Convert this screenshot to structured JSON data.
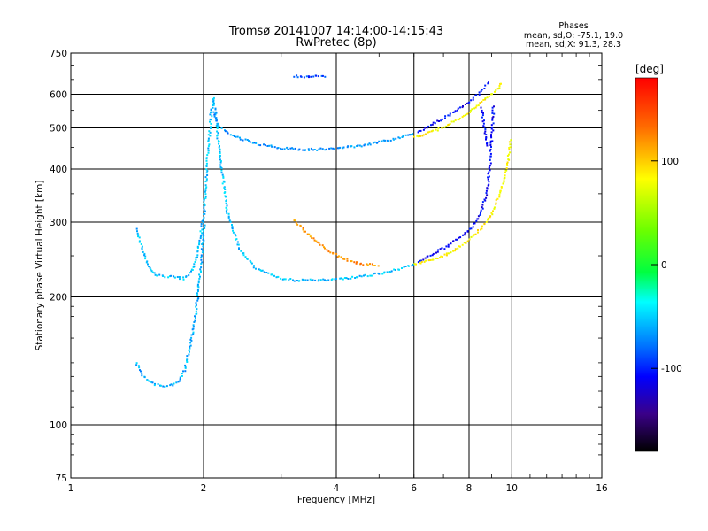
{
  "chart_data": {
    "type": "scatter",
    "title": "Tromsø 20141007 14:14:00-14:15:43",
    "subtitle": "RwPretec (8p)",
    "xlabel": "Frequency [MHz]",
    "ylabel": "Stationary phase Virtual Height [km]",
    "xscale": "log",
    "yscale": "log",
    "xlim": [
      1,
      16
    ],
    "ylim": [
      75,
      750
    ],
    "xticks": [
      1,
      2,
      4,
      6,
      8,
      10,
      16
    ],
    "yticks": [
      75,
      100,
      200,
      300,
      400,
      500,
      600,
      750
    ],
    "grid": true,
    "legend": {
      "title": "Phases",
      "lines": [
        "mean, sd,O: -75.1, 19.0",
        "mean, sd,X:  91.3, 28.3"
      ],
      "position": "top-right"
    },
    "colorbar": {
      "label": "[deg]",
      "range": [
        -180,
        180
      ],
      "ticks": [
        100,
        0,
        -100
      ],
      "colormap": "rainbow"
    },
    "traces": [
      {
        "x": [
          1.4,
          1.45,
          1.5,
          1.55,
          1.6,
          1.7,
          1.8,
          1.85,
          1.9,
          1.95,
          2.0,
          2.02,
          2.05,
          2.07,
          2.1,
          2.15,
          2.25,
          2.4,
          2.6,
          2.8,
          3.0,
          3.2,
          3.5,
          4.0,
          4.5,
          5.0,
          5.5,
          6.0
        ],
        "y": [
          290,
          260,
          235,
          227,
          225,
          224,
          222,
          228,
          240,
          270,
          320,
          390,
          470,
          540,
          590,
          470,
          320,
          260,
          236,
          228,
          222,
          220,
          220,
          221,
          224,
          228,
          233,
          240
        ],
        "phase": -55
      },
      {
        "x": [
          2.1,
          2.15,
          2.25,
          2.4,
          2.6,
          2.8,
          3.0,
          3.3,
          3.6,
          4.0,
          4.5,
          5.0,
          5.5,
          6.0
        ],
        "y": [
          550,
          510,
          490,
          475,
          462,
          455,
          450,
          447,
          447,
          450,
          456,
          465,
          475,
          490
        ],
        "phase": -70
      },
      {
        "x": [
          1.4,
          1.45,
          1.5,
          1.55,
          1.6,
          1.65,
          1.7,
          1.75,
          1.8,
          1.85,
          1.9,
          1.95,
          2.0
        ],
        "y": [
          140,
          132,
          127,
          125,
          124,
          124,
          125,
          128,
          135,
          150,
          175,
          220,
          300
        ],
        "phase": -60
      },
      {
        "x": [
          6.1,
          6.5,
          7.0,
          7.5,
          8.0,
          8.3,
          8.5,
          8.7,
          8.85
        ],
        "y": [
          490,
          510,
          530,
          555,
          580,
          600,
          615,
          630,
          650
        ],
        "phase": -110
      },
      {
        "x": [
          6.1,
          6.5,
          7.0,
          7.5,
          8.0,
          8.3,
          8.5,
          8.7,
          8.8,
          8.9,
          9.0,
          9.05
        ],
        "y": [
          242,
          252,
          262,
          275,
          290,
          305,
          322,
          348,
          375,
          420,
          500,
          570
        ],
        "phase": -110
      },
      {
        "x": [
          8.5,
          8.6,
          8.65,
          8.7,
          8.75
        ],
        "y": [
          560,
          520,
          490,
          470,
          450
        ],
        "phase": -105
      },
      {
        "x": [
          6.0,
          6.5,
          7.0,
          7.5,
          8.0,
          8.5,
          9.0,
          9.3,
          9.5
        ],
        "y": [
          478,
          490,
          505,
          525,
          548,
          578,
          605,
          625,
          645
        ],
        "phase": 85
      },
      {
        "x": [
          6.0,
          6.5,
          7.0,
          7.5,
          8.0,
          8.5,
          9.0,
          9.3,
          9.6,
          9.8,
          9.9
        ],
        "y": [
          240,
          245,
          252,
          262,
          275,
          292,
          318,
          345,
          385,
          430,
          475
        ],
        "phase": 85
      },
      {
        "x": [
          3.2,
          3.4,
          3.6,
          3.8,
          4.0,
          4.2,
          4.4,
          4.6,
          4.8,
          5.0
        ],
        "y": [
          305,
          285,
          270,
          260,
          251,
          246,
          242,
          240,
          239,
          238
        ],
        "phase": 120
      },
      {
        "x": [
          3.2,
          3.4,
          3.6,
          3.8
        ],
        "y": [
          665,
          664,
          664,
          665
        ],
        "phase": -90
      }
    ]
  }
}
